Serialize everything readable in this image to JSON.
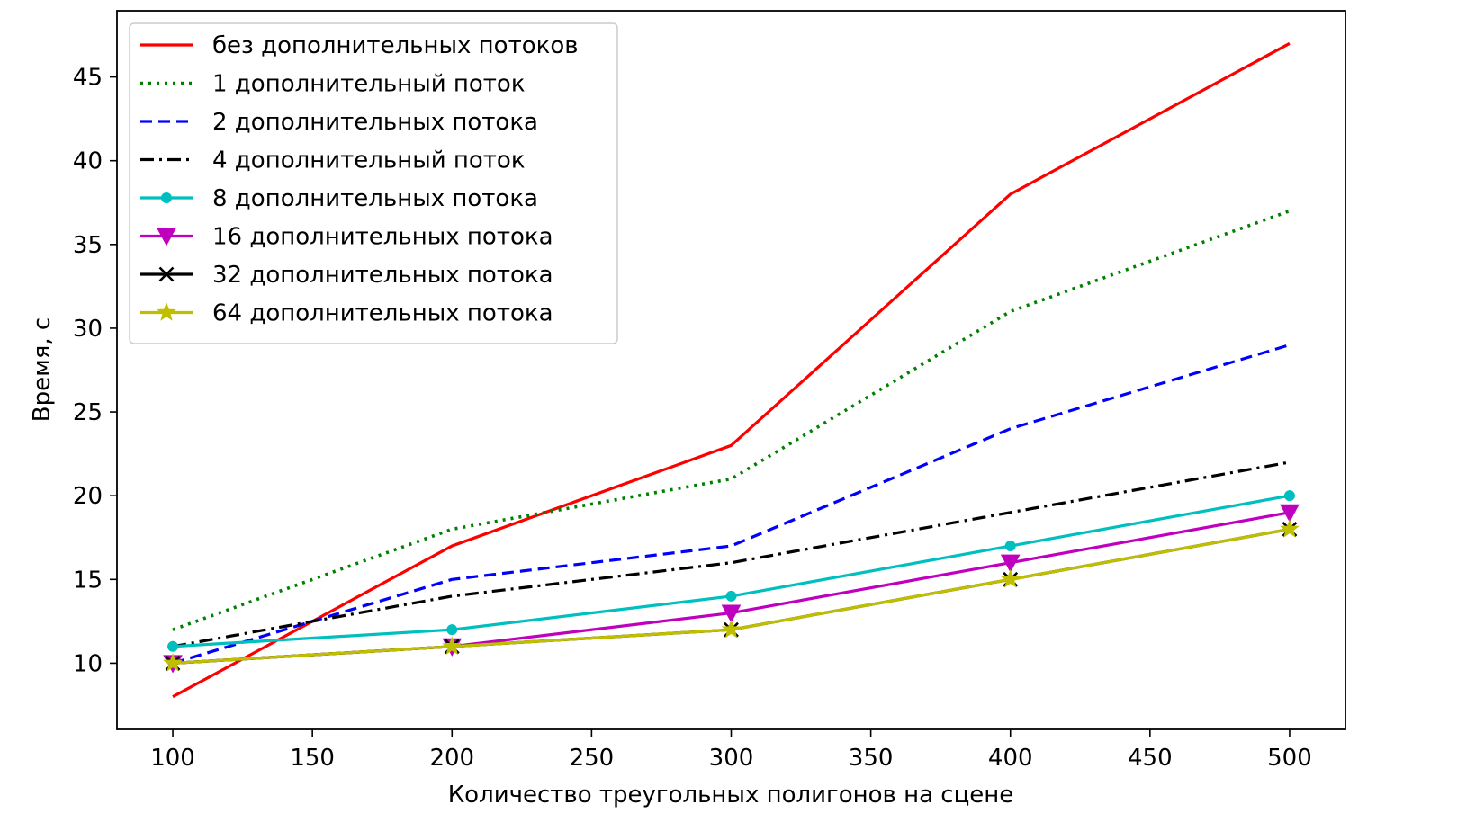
{
  "chart_data": {
    "type": "line",
    "xlabel": "Количество треугольных полигонов на сцене",
    "ylabel": "Время, с",
    "xlim": [
      80,
      520
    ],
    "ylim": [
      6.05,
      48.95
    ],
    "x_ticks": [
      100,
      150,
      200,
      250,
      300,
      350,
      400,
      450,
      500
    ],
    "y_ticks": [
      10,
      15,
      20,
      25,
      30,
      35,
      40,
      45
    ],
    "x": [
      100,
      200,
      300,
      400,
      500
    ],
    "legend_position": "top-left",
    "grid": false,
    "series": [
      {
        "name": "без дополнительных потоков",
        "values": [
          8,
          17,
          23,
          38,
          47
        ],
        "color": "#ff0000",
        "dash": "solid",
        "marker": "none"
      },
      {
        "name": "1 дополнительный поток",
        "values": [
          12,
          18,
          21,
          31,
          37
        ],
        "color": "#008000",
        "dash": "dotted",
        "marker": "none"
      },
      {
        "name": "2 дополнительных потока",
        "values": [
          10,
          15,
          17,
          24,
          29
        ],
        "color": "#0000ff",
        "dash": "dashed",
        "marker": "none"
      },
      {
        "name": "4 дополнительный поток",
        "values": [
          11,
          14,
          16,
          19,
          22
        ],
        "color": "#000000",
        "dash": "dashdot",
        "marker": "none"
      },
      {
        "name": "8 дополнительных потока",
        "values": [
          11,
          12,
          14,
          17,
          20
        ],
        "color": "#00bfbf",
        "dash": "solid",
        "marker": "point"
      },
      {
        "name": "16 дополнительных потока",
        "values": [
          10,
          11,
          13,
          16,
          19
        ],
        "color": "#bf00bf",
        "dash": "solid",
        "marker": "triangle-down"
      },
      {
        "name": "32 дополнительных потока",
        "values": [
          10,
          11,
          12,
          15,
          18
        ],
        "color": "#000000",
        "dash": "solid",
        "marker": "x"
      },
      {
        "name": "64 дополнительных потока",
        "values": [
          10,
          11,
          12,
          15,
          18
        ],
        "color": "#bfbf00",
        "dash": "solid",
        "marker": "star"
      }
    ]
  }
}
